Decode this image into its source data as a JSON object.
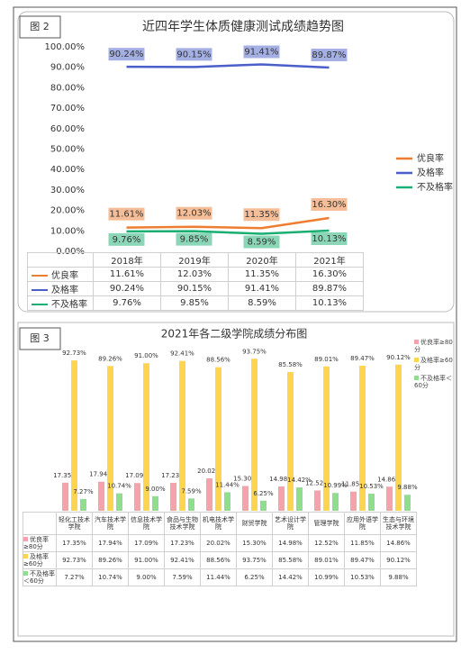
{
  "chart_data": [
    {
      "type": "line",
      "label": "图 2",
      "title": "近四年学生体质健康测试成绩趋势图",
      "categories": [
        "2018年",
        "2019年",
        "2020年",
        "2021年"
      ],
      "series": [
        {
          "name": "优良率",
          "color": "#ed7d31",
          "values": [
            11.61,
            12.03,
            11.35,
            16.3
          ],
          "value_labels": [
            "11.61%",
            "12.03%",
            "11.35%",
            "16.30%"
          ]
        },
        {
          "name": "及格率",
          "color": "#4a5fc9",
          "values": [
            90.24,
            90.15,
            91.41,
            89.87
          ],
          "value_labels": [
            "90.24%",
            "90.15%",
            "91.41%",
            "89.87%"
          ]
        },
        {
          "name": "不及格率",
          "color": "#1aae72",
          "values": [
            9.76,
            9.85,
            8.59,
            10.13
          ],
          "value_labels": [
            "9.76%",
            "9.85%",
            "8.59%",
            "10.13%"
          ]
        }
      ],
      "ylim": [
        0,
        100
      ],
      "yticks": [
        {
          "value": 0,
          "label": "0.00%"
        },
        {
          "value": 10,
          "label": "10.00%"
        },
        {
          "value": 20,
          "label": "20.00%"
        },
        {
          "value": 30,
          "label": "30.00%"
        },
        {
          "value": 40,
          "label": "40.00%"
        },
        {
          "value": 50,
          "label": "50.00%"
        },
        {
          "value": 60,
          "label": "60.00%"
        },
        {
          "value": 70,
          "label": "70.00%"
        },
        {
          "value": 80,
          "label": "80.00%"
        },
        {
          "value": 90,
          "label": "90.00%"
        },
        {
          "value": 100,
          "label": "100.00%"
        }
      ],
      "legend": "right"
    },
    {
      "type": "bar",
      "label": "图 3",
      "title": "2021年各二级学院成绩分布图",
      "categories": [
        "轻化工技术学院",
        "汽车技术学院",
        "信息技术学院",
        "食品与生物技术学院",
        "机电技术学院",
        "财贸学院",
        "艺术设计学院",
        "管理学院",
        "应用外语学院",
        "生态与环境技术学院"
      ],
      "series": [
        {
          "name": "优良率≥80分",
          "color": "#f4a3ad",
          "values": [
            17.35,
            17.94,
            17.09,
            17.23,
            20.02,
            15.3,
            14.98,
            12.52,
            11.85,
            14.86
          ],
          "value_labels": [
            "17.35%",
            "17.94%",
            "17.09%",
            "17.23%",
            "20.02%",
            "15.30%",
            "14.98%",
            "12.52%",
            "11.85%",
            "14.86%"
          ]
        },
        {
          "name": "及格率≥60分",
          "color": "#ffd54f",
          "values": [
            92.73,
            89.26,
            91.0,
            92.41,
            88.56,
            93.75,
            85.58,
            89.01,
            89.47,
            90.12
          ],
          "value_labels": [
            "92.73%",
            "89.26%",
            "91.00%",
            "92.41%",
            "88.56%",
            "93.75%",
            "85.58%",
            "89.01%",
            "89.47%",
            "90.12%"
          ]
        },
        {
          "name": "不及格率＜60分",
          "color": "#92dc92",
          "values": [
            7.27,
            10.74,
            9.0,
            7.59,
            11.44,
            6.25,
            14.42,
            10.99,
            10.53,
            9.88
          ],
          "value_labels": [
            "7.27%",
            "10.74%",
            "9.00%",
            "7.59%",
            "11.44%",
            "6.25%",
            "14.42%",
            "10.99%",
            "10.53%",
            "9.88%"
          ]
        }
      ],
      "legend": "right"
    }
  ]
}
